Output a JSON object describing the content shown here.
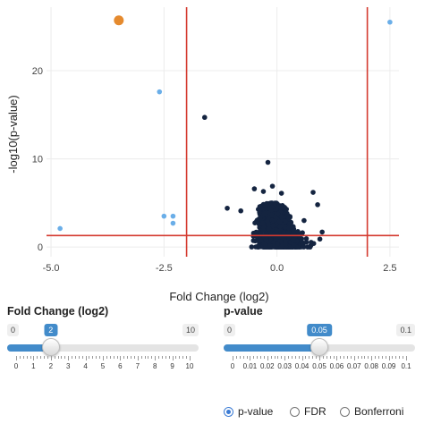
{
  "chart_data": {
    "type": "scatter",
    "title": "",
    "xlabel": "Fold Change (log2)",
    "ylabel": "-log10(p-value)",
    "xlim": [
      -5.1,
      2.7
    ],
    "ylim": [
      -1.1,
      27.2
    ],
    "xticks": [
      -5.0,
      -2.5,
      0.0,
      2.5
    ],
    "xtick_labels": [
      "-5.0",
      "-2.5",
      "0.0",
      "2.5"
    ],
    "yticks": [
      0,
      10,
      20
    ],
    "ytick_labels": [
      "0",
      "10",
      "20"
    ],
    "grid": true,
    "thresholds": {
      "fold_change": [
        -2,
        2
      ],
      "neg_log10_p": 1.301,
      "color": "#d43a2f"
    },
    "series": [
      {
        "color": "#e58a2e",
        "points": [
          [
            -3.5,
            25.7
          ]
        ]
      },
      {
        "color": "#6aaee8",
        "points": [
          [
            2.5,
            25.5
          ],
          [
            -2.6,
            17.6
          ],
          [
            -4.8,
            2.1
          ],
          [
            -2.5,
            3.5
          ],
          [
            -2.3,
            3.5
          ],
          [
            -2.3,
            2.7
          ]
        ]
      },
      {
        "color": "#142440",
        "points": [
          [
            -1.6,
            14.7
          ],
          [
            -0.2,
            9.6
          ],
          [
            -0.5,
            6.6
          ],
          [
            -0.3,
            6.3
          ],
          [
            -0.1,
            6.9
          ],
          [
            0.8,
            6.2
          ],
          [
            0.1,
            6.1
          ],
          [
            -1.1,
            4.4
          ],
          [
            0.9,
            4.8
          ],
          [
            -0.8,
            4.1
          ],
          [
            0.6,
            3.0
          ],
          [
            1.0,
            1.7
          ],
          [
            0.95,
            0.9
          ]
        ],
        "cloud": {
          "center": [
            0.0,
            1.3
          ],
          "x_spread": 0.75,
          "y_extent": [
            0.0,
            5.0
          ],
          "count": 1500
        }
      }
    ]
  },
  "controls": {
    "fold_change": {
      "title": "Fold Change (log2)",
      "min_label": "0",
      "max_label": "10",
      "value_label": "2",
      "min": 0,
      "max": 10,
      "value": 2,
      "tick_labels": [
        "0",
        "1",
        "2",
        "3",
        "4",
        "5",
        "6",
        "7",
        "8",
        "9",
        "10"
      ]
    },
    "pvalue": {
      "title": "p-value",
      "min_label": "0",
      "max_label": "0.1",
      "value_label": "0.05",
      "min": 0,
      "max": 0.1,
      "value": 0.05,
      "tick_labels": [
        "0",
        "0.01",
        "0.02",
        "0.03",
        "0.04",
        "0.05",
        "0.06",
        "0.07",
        "0.08",
        "0.09",
        "0.1"
      ]
    },
    "correction": {
      "options": [
        "p-value",
        "FDR",
        "Bonferroni"
      ],
      "selected": "p-value"
    }
  }
}
